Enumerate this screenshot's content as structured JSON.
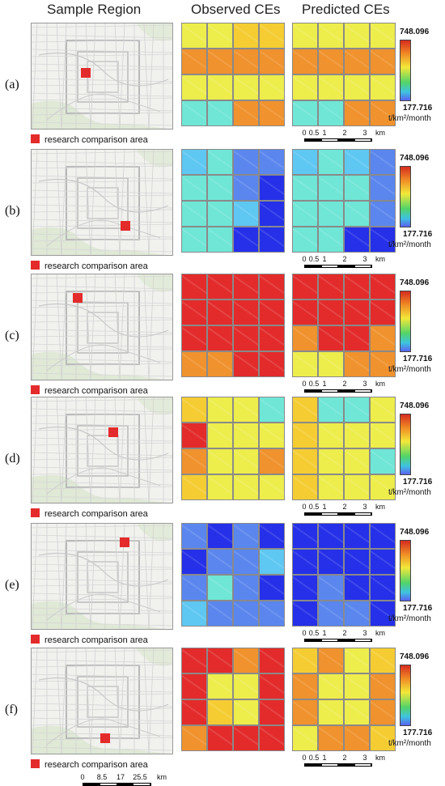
{
  "headers": {
    "sample": "Sample Region",
    "observed": "Observed CEs",
    "predicted": "Predicted CEs"
  },
  "legend_text": "research comparison area",
  "region_scale": {
    "ticks": [
      "0",
      "8.5",
      "17",
      "25.5"
    ],
    "unit": "km"
  },
  "ce_scale": {
    "ticks": [
      "0",
      "0.5",
      "1",
      "2",
      "3"
    ],
    "unit": "km"
  },
  "colorbar": {
    "max": "748.096",
    "min": "177.716",
    "unit": "t/km²/month"
  },
  "colors": {
    "R": "#e32b2b",
    "O": "#f0922d",
    "Y": "#f5cd33",
    "L": "#eded4c",
    "C": "#6fe6d6",
    "S": "#5ec7f2",
    "B": "#5a86ee",
    "D": "#2530e8"
  },
  "rows": [
    {
      "label": "(a)",
      "observed": [
        "LLYY",
        "OOOO",
        "LLLL",
        "CCOO"
      ],
      "predicted": [
        "LLLL",
        "OOOO",
        "LLLL",
        "CCOO"
      ]
    },
    {
      "label": "(b)",
      "observed": [
        "SCBB",
        "CCBD",
        "CCSD",
        "CCDD"
      ],
      "predicted": [
        "SCSB",
        "CCCB",
        "CCCB",
        "CCDD"
      ]
    },
    {
      "label": "(c)",
      "observed": [
        "RRRR",
        "RRRR",
        "RRRR",
        "OORR"
      ],
      "predicted": [
        "RRRR",
        "RRRR",
        "ORRO",
        "LLOO"
      ]
    },
    {
      "label": "(d)",
      "observed": [
        "YLLC",
        "RLLL",
        "OLLO",
        "YLLL"
      ],
      "predicted": [
        "YCCL",
        "YLLL",
        "YLLC",
        "YLLL"
      ]
    },
    {
      "label": "(e)",
      "observed": [
        "BDBD",
        "DBBS",
        "BCBD",
        "SBBB"
      ],
      "predicted": [
        "DDDD",
        "DDDD",
        "DBDD",
        "DBBD"
      ]
    },
    {
      "label": "(f)",
      "observed": [
        "RROR",
        "RLLR",
        "RYLR",
        "ORRR"
      ],
      "predicted": [
        "YOLY",
        "OLLO",
        "OLLO",
        "LOOY"
      ]
    }
  ]
}
